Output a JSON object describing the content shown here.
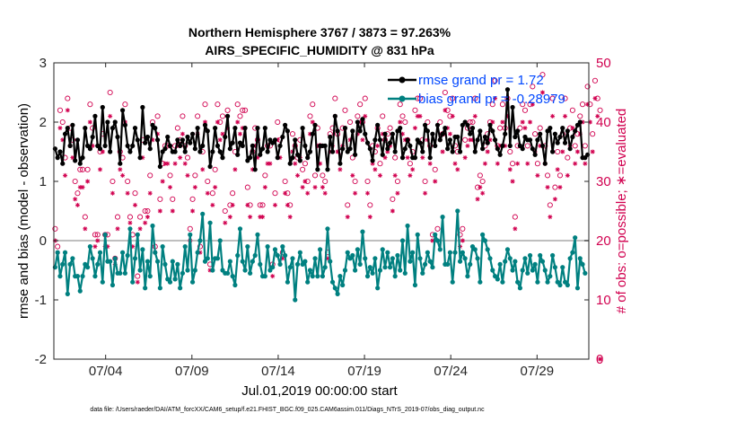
{
  "chart_data": {
    "type": "line",
    "title": "Northern Hemisphere 3767 / 3873 = 97.263%",
    "subtitle": "AIRS_SPECIFIC_HUMIDITY @ 831 hPa",
    "xlabel": "Jul.01,2019 00:00:00 start",
    "ylabel": "rmse and bias (model - observation)",
    "ylabel_right": "# of obs: o=possible; ∗=evaluated",
    "footnote": "data file: /Users/raeder/DAI/ATM_forcXX/CAM6_setup/f.e21.FHIST_BGC.f09_025.CAM6assim.011/Diags_NTrS_2019-07/obs_diag_output.nc",
    "x_range_days": [
      0,
      31
    ],
    "ylim": [
      -2,
      3
    ],
    "ylim_right": [
      0,
      50
    ],
    "yticks": [
      "3",
      "2",
      "1",
      "0",
      "-1",
      "-2"
    ],
    "yticks_right": [
      "50",
      "40",
      "30",
      "20",
      "10",
      "0"
    ],
    "xticks": [
      {
        "day": 3,
        "label": "07/04"
      },
      {
        "day": 8,
        "label": "07/09"
      },
      {
        "day": 13,
        "label": "07/14"
      },
      {
        "day": 18,
        "label": "07/19"
      },
      {
        "day": 23,
        "label": "07/24"
      },
      {
        "day": 28,
        "label": "07/29"
      }
    ],
    "zero_line": 0,
    "grid": false,
    "legend_position": "top-right",
    "colors": {
      "rmse": "#000000",
      "bias": "#008080",
      "obs": "#d1004f",
      "zero": "#bfbfbf"
    },
    "series": [
      {
        "name": "rmse",
        "legend_label": "rmse grand pr = 1.72",
        "values": [
          1.55,
          1.4,
          1.5,
          1.3,
          1.8,
          1.9,
          1.6,
          1.95,
          1.35,
          1.7,
          1.3,
          1.4,
          1.9,
          1.6,
          1.55,
          1.75,
          2.1,
          1.6,
          1.55,
          2.25,
          1.6,
          2.0,
          1.5,
          1.9,
          2.0,
          1.75,
          1.3,
          2.2,
          1.95,
          1.6,
          1.5,
          1.6,
          1.9,
          1.7,
          1.4,
          2.25,
          1.65,
          1.75,
          1.55,
          1.95,
          1.9,
          1.7,
          1.25,
          1.5,
          1.55,
          1.75,
          1.6,
          1.5,
          1.5,
          1.7,
          1.6,
          1.7,
          1.5,
          1.75,
          1.65,
          1.8,
          1.55,
          1.9,
          1.5,
          1.6,
          1.95,
          1.85,
          1.25,
          1.5,
          1.9,
          1.6,
          1.5,
          1.4,
          1.75,
          2.1,
          1.55,
          1.65,
          1.9,
          1.45,
          1.65,
          1.6,
          1.9,
          1.35,
          1.4,
          1.6,
          1.2,
          1.9,
          1.45,
          1.55,
          1.9,
          1.5,
          1.7,
          1.65,
          1.7,
          1.4,
          1.6,
          1.75,
          1.95,
          1.85,
          1.3,
          1.4,
          1.7,
          1.45,
          1.35,
          1.9,
          1.6,
          1.4,
          1.5,
          1.8,
          1.95,
          1.2,
          1.6,
          1.6,
          1.6,
          1.2,
          1.75,
          1.5,
          2.1,
          1.85,
          1.3,
          1.55,
          1.9,
          1.5,
          1.55,
          1.85,
          1.45,
          2.0,
          1.85,
          2.05,
          1.8,
          1.65,
          1.55,
          1.35,
          1.7,
          1.95,
          1.7,
          1.45,
          1.8,
          1.55,
          1.65,
          1.8,
          1.5,
          1.85,
          1.9,
          1.4,
          1.55,
          1.7,
          1.6,
          1.4,
          1.4,
          1.7,
          1.65,
          1.5,
          1.95,
          1.85,
          1.4,
          1.8,
          1.6,
          1.95,
          1.7,
          1.8,
          1.9,
          1.55,
          1.7,
          1.5,
          1.75,
          1.75,
          1.5,
          1.95,
          2.0,
          1.95,
          1.8,
          1.9,
          1.5,
          1.7,
          1.85,
          1.55,
          1.75,
          1.65,
          1.95,
          1.85,
          1.7,
          1.55,
          1.45,
          1.6,
          1.8,
          2.55,
          1.6,
          2.25,
          1.75,
          1.85,
          1.6,
          1.55,
          1.75,
          1.7,
          1.7,
          1.55,
          1.45,
          1.7,
          1.8,
          1.6,
          1.3,
          1.85,
          1.9,
          1.5,
          1.8,
          1.65,
          1.75,
          1.9,
          1.65,
          1.85,
          1.55,
          1.75,
          1.85,
          1.95,
          2.0,
          1.4,
          1.4,
          1.45
        ]
      },
      {
        "name": "bias",
        "legend_label": "bias grand pr = -0.28979",
        "values": [
          -0.45,
          -0.2,
          -0.6,
          -0.4,
          -0.2,
          -0.9,
          -0.4,
          -0.3,
          -0.6,
          -0.6,
          -0.85,
          -0.6,
          -0.4,
          -0.45,
          -0.1,
          -0.3,
          -0.6,
          -0.4,
          -0.2,
          -0.7,
          0.1,
          -0.35,
          -0.35,
          -0.75,
          -0.3,
          -0.55,
          -0.55,
          -0.2,
          -0.55,
          -0.25,
          0.2,
          -0.7,
          -0.3,
          0.1,
          -0.5,
          -0.15,
          -0.8,
          -0.35,
          -0.6,
          0.25,
          -0.2,
          -0.35,
          -0.8,
          -0.1,
          -0.4,
          -0.65,
          -0.7,
          -0.35,
          -0.65,
          -0.4,
          -0.8,
          -0.55,
          -0.1,
          -0.5,
          0.1,
          -0.7,
          -0.5,
          -0.2,
          0.0,
          0.45,
          -0.35,
          -0.3,
          0.3,
          -0.5,
          -0.3,
          -0.3,
          0.0,
          -0.5,
          -0.55,
          -0.55,
          -0.35,
          -0.6,
          -0.75,
          -0.25,
          0.2,
          -0.35,
          -0.5,
          -0.1,
          -0.55,
          -0.35,
          -0.25,
          0.1,
          -0.4,
          -0.6,
          -0.6,
          -0.1,
          -0.5,
          -0.45,
          -0.15,
          -0.25,
          -0.4,
          -0.1,
          -0.25,
          -0.7,
          -0.45,
          -0.3,
          -1.0,
          -0.4,
          -0.2,
          -0.4,
          -0.35,
          -0.7,
          -0.5,
          -0.6,
          -0.3,
          -0.6,
          -0.15,
          -0.6,
          -0.45,
          0.2,
          -0.35,
          -0.7,
          -0.8,
          -0.9,
          -0.6,
          -0.75,
          -0.5,
          -0.2,
          -0.3,
          -0.25,
          -0.5,
          -0.15,
          -0.4,
          0.15,
          -0.3,
          -0.6,
          -0.45,
          -0.55,
          -0.3,
          -0.8,
          -0.5,
          -0.15,
          -0.45,
          -0.2,
          -0.45,
          -0.3,
          -0.6,
          -0.25,
          -0.5,
          0.0,
          -0.55,
          0.25,
          -0.35,
          -0.2,
          -0.75,
          0.1,
          -0.3,
          -0.55,
          -0.4,
          -0.2,
          -0.35,
          -0.45,
          0.1,
          0.0,
          -0.15,
          0.4,
          -0.4,
          -0.4,
          -0.2,
          -0.7,
          -0.2,
          0.5,
          -0.35,
          -0.2,
          -0.3,
          -0.6,
          -0.4,
          -0.1,
          -0.15,
          -0.3,
          -0.7,
          0.1,
          0.0,
          -0.15,
          -0.3,
          -0.5,
          -0.6,
          -0.65,
          -0.4,
          -0.7,
          -0.35,
          -0.15,
          -0.3,
          -0.5,
          -0.35,
          -0.7,
          -0.8,
          -0.5,
          -0.3,
          -0.55,
          -0.25,
          -0.5,
          -0.4,
          -0.7,
          -0.25,
          -0.35,
          -0.5,
          -0.7,
          -0.6,
          -0.25,
          -0.45,
          -0.7,
          -0.75,
          -0.45,
          -0.7,
          -0.75,
          -0.3,
          -0.2,
          0.05,
          -0.8,
          -0.3,
          -0.4,
          -0.55
        ]
      }
    ],
    "obs_possible": [
      22,
      19,
      42,
      40,
      34,
      44,
      39,
      37,
      30,
      28,
      32,
      32,
      24,
      32,
      43,
      39,
      21,
      21,
      35,
      38,
      21,
      21,
      45,
      30,
      17,
      24,
      35,
      34,
      43,
      30,
      24,
      21,
      28,
      14,
      24,
      37,
      25,
      25,
      31,
      40,
      19,
      41,
      27,
      33,
      36,
      36,
      31,
      27,
      36,
      39,
      37,
      41,
      36,
      34,
      22,
      27,
      31,
      41,
      19,
      35,
      43,
      30,
      16,
      28,
      32,
      43,
      40,
      41,
      25,
      42,
      26,
      28,
      35,
      43,
      41,
      42,
      42,
      29,
      26,
      35,
      39,
      37,
      26,
      26,
      31,
      36,
      36,
      16,
      28,
      40,
      37,
      18,
      30,
      28,
      26,
      38,
      36,
      34,
      37,
      32,
      33,
      30,
      41,
      43,
      31,
      39,
      36,
      31,
      30,
      18,
      38,
      39,
      44,
      38,
      35,
      39,
      42,
      26,
      40,
      34,
      30,
      41,
      43,
      40,
      44,
      30,
      26,
      36,
      35,
      39,
      33,
      41,
      37,
      38,
      39,
      27,
      34,
      30,
      43,
      41,
      40,
      37,
      33,
      35,
      42,
      44,
      44,
      37,
      30,
      40,
      36,
      21,
      32,
      22,
      40,
      38,
      45,
      42,
      41,
      44,
      36,
      35,
      21,
      22,
      37,
      39,
      40,
      40,
      44,
      29,
      31,
      30,
      36,
      38,
      40,
      43,
      47,
      36,
      39,
      43,
      39,
      44,
      35,
      33,
      24,
      36,
      39,
      43,
      42,
      36,
      43,
      46,
      38,
      33,
      39,
      48,
      36,
      31,
      26,
      44,
      29,
      35,
      31,
      38,
      44,
      34,
      39,
      42,
      36,
      38,
      41,
      43,
      36,
      46,
      43,
      38,
      47,
      44,
      42
    ],
    "obs_evaluated": [
      20,
      18,
      39,
      37,
      31,
      42,
      36,
      34,
      27,
      26,
      29,
      29,
      22,
      30,
      40,
      36,
      19,
      20,
      32,
      35,
      19,
      19,
      41,
      28,
      16,
      22,
      32,
      31,
      40,
      28,
      23,
      19,
      26,
      13,
      22,
      34,
      23,
      24,
      28,
      37,
      18,
      38,
      25,
      30,
      33,
      33,
      29,
      25,
      33,
      36,
      34,
      38,
      33,
      31,
      20,
      25,
      29,
      38,
      18,
      32,
      40,
      28,
      15,
      26,
      29,
      40,
      37,
      38,
      23,
      39,
      24,
      26,
      32,
      40,
      38,
      39,
      39,
      26,
      24,
      32,
      36,
      34,
      24,
      24,
      29,
      33,
      33,
      14,
      26,
      37,
      34,
      17,
      28,
      26,
      24,
      35,
      33,
      31,
      34,
      29,
      30,
      28,
      38,
      40,
      29,
      36,
      33,
      29,
      28,
      17,
      35,
      36,
      41,
      35,
      32,
      36,
      39,
      24,
      37,
      31,
      28,
      38,
      40,
      37,
      41,
      28,
      24,
      33,
      32,
      36,
      31,
      38,
      34,
      35,
      36,
      25,
      31,
      28,
      40,
      38,
      37,
      34,
      31,
      32,
      39,
      41,
      41,
      34,
      28,
      37,
      33,
      20,
      30,
      20,
      37,
      35,
      42,
      39,
      38,
      41,
      33,
      32,
      19,
      20,
      34,
      36,
      37,
      37,
      41,
      27,
      29,
      28,
      33,
      35,
      37,
      40,
      44,
      33,
      36,
      40,
      36,
      41,
      32,
      30,
      22,
      33,
      36,
      40,
      39,
      33,
      40,
      43,
      35,
      31,
      36,
      45,
      33,
      29,
      24,
      41,
      27,
      32,
      29,
      35,
      41,
      31,
      36,
      39,
      33,
      35,
      38,
      40,
      33,
      43,
      40,
      35,
      44,
      41,
      0
    ]
  }
}
